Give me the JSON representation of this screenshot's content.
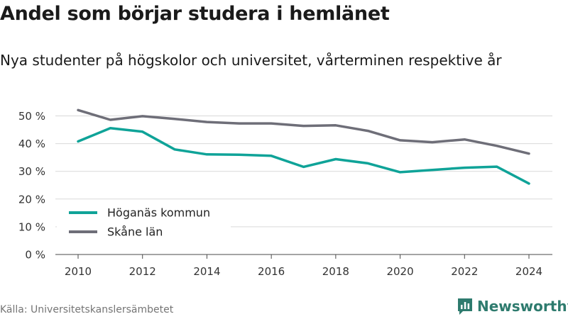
{
  "header": {
    "title": "Andel som börjar studera i hemlänet",
    "subtitle": "Nya studenter på högskolor och universitet, vårterminen respektive år"
  },
  "footer": {
    "source": "Källa: Universitetskanslersämbetet",
    "brand": "Newsworthy",
    "brand_icon": "newsworthy-logo-icon",
    "brand_color": "#2e7b6e"
  },
  "chart_data": {
    "type": "line",
    "x": [
      2010,
      2011,
      2012,
      2013,
      2014,
      2015,
      2016,
      2017,
      2018,
      2019,
      2020,
      2021,
      2022,
      2023,
      2024
    ],
    "x_ticks": [
      "2010",
      "2012",
      "2014",
      "2016",
      "2018",
      "2020",
      "2022",
      "2024"
    ],
    "ylim": [
      0,
      50
    ],
    "y_ticks": [
      "0 %",
      "10 %",
      "20 %",
      "30 %",
      "40 %",
      "50 %"
    ],
    "grid": true,
    "legend_position": "bottom-left",
    "series": [
      {
        "name": "Höganäs kommun",
        "color": "#0fa398",
        "values": [
          40.8,
          45.6,
          44.3,
          37.9,
          36.1,
          36.0,
          35.6,
          31.6,
          34.4,
          32.9,
          29.7,
          30.5,
          31.3,
          31.7,
          25.6
        ]
      },
      {
        "name": "Skåne län",
        "color": "#6e6e78",
        "values": [
          52.1,
          48.6,
          49.9,
          48.9,
          47.8,
          47.3,
          47.3,
          46.4,
          46.6,
          44.6,
          41.2,
          40.5,
          41.5,
          39.2,
          36.4
        ]
      }
    ]
  }
}
